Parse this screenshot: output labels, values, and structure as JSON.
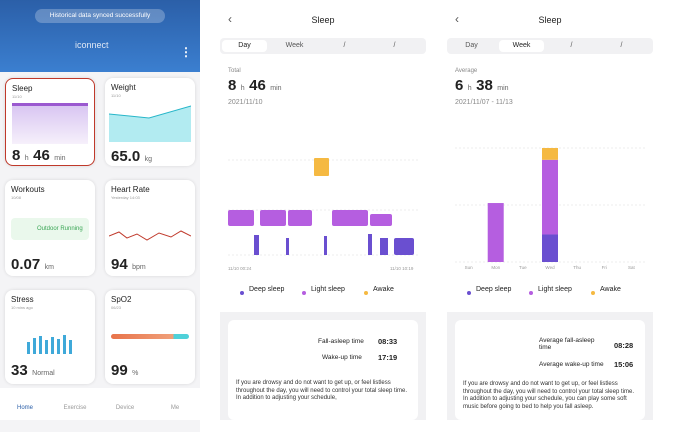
{
  "home": {
    "toast": "Historical data synced successfully",
    "brand": "iconnect",
    "sleep": {
      "title": "Sleep",
      "date": "11/10",
      "hours": "8",
      "h": "h",
      "mins": "46",
      "min": "min"
    },
    "weight": {
      "title": "Weight",
      "date": "11/10",
      "value": "65.0",
      "unit": "kg"
    },
    "workouts": {
      "title": "Workouts",
      "date": "10/08",
      "activity": "Outdoor Running",
      "value": "0.07",
      "unit": "km"
    },
    "heart_rate": {
      "title": "Heart Rate",
      "date": "Yesterday 14:03",
      "value": "94",
      "unit": "bpm"
    },
    "stress": {
      "title": "Stress",
      "date": "10 mins ago",
      "value": "33",
      "unit": "Normal"
    },
    "spo2": {
      "title": "SpO2",
      "date": "06/23",
      "value": "99",
      "unit": "%"
    },
    "nav": [
      "Home",
      "Exercise",
      "Device",
      "Me"
    ]
  },
  "day_view": {
    "title": "Sleep",
    "tabs": [
      "Day",
      "Week",
      "/",
      "/"
    ],
    "label": "Total",
    "hours": "8",
    "h": "h",
    "mins": "46",
    "min": "min",
    "date": "2021/11/10",
    "axis": [
      "11/10 00:24",
      "11/10 10:19"
    ],
    "legend": [
      "Deep sleep",
      "Light sleep",
      "Awake"
    ],
    "fall_asleep_label": "Fall-asleep time",
    "fall_asleep": "08:33",
    "wake_label": "Wake-up time",
    "wake": "17:19",
    "advice": "If you are drowsy and do not want to get up, or feel listless throughout the day, you will need to control your total sleep time. In addition to adjusting your schedule,"
  },
  "week_view": {
    "title": "Sleep",
    "tabs": [
      "Day",
      "Week",
      "/",
      "/"
    ],
    "label": "Average",
    "hours": "6",
    "h": "h",
    "mins": "38",
    "min": "min",
    "date": "2021/11/07 - 11/13",
    "chart": {
      "type": "bar",
      "stacked": true,
      "categories": [
        "Sun",
        "Mon",
        "Tue",
        "Wed",
        "Thu",
        "Fri",
        "Sat"
      ],
      "series": [
        {
          "name": "Deep sleep",
          "color": "#6a4fd0",
          "values": [
            null,
            0,
            null,
            2.1,
            null,
            null,
            null
          ]
        },
        {
          "name": "Light sleep",
          "color": "#b55ee0",
          "values": [
            null,
            4.5,
            null,
            5.7,
            null,
            null,
            null
          ]
        },
        {
          "name": "Awake",
          "color": "#f5b942",
          "values": [
            null,
            0,
            null,
            0.9,
            null,
            null,
            null
          ]
        }
      ]
    },
    "fall_asleep_label": "Average fall-asleep time",
    "fall_asleep": "08:28",
    "wake_label": "Average wake-up time",
    "wake": "15:06",
    "advice": "If you are drowsy and do not want to get up, or feel listless throughout the day, you will need to control your total sleep time. In addition to adjusting your schedule, you can play some soft music before going to bed to help you fall asleep."
  }
}
